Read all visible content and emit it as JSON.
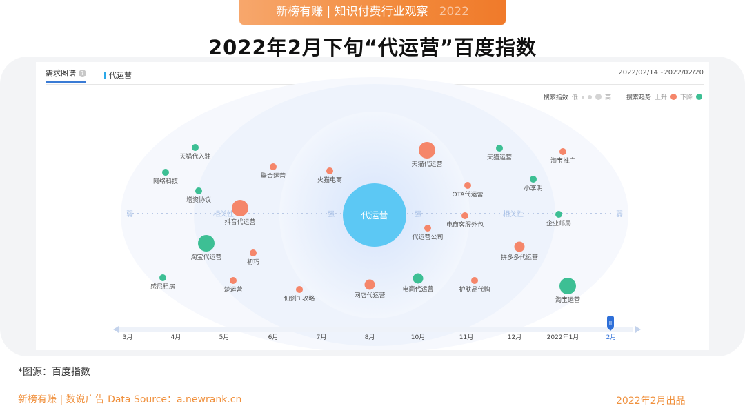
{
  "banner": {
    "text": "新榜有赚 | 知识付费行业观察",
    "year": "2022"
  },
  "page_title": "2022年2月下旬“代运营”百度指数",
  "panel": {
    "tab_active": "需求图谱",
    "help_glyph": "?",
    "keyword_tab": "代运营",
    "date_range": "2022/02/14~2022/02/20"
  },
  "legend": {
    "index_label": "搜索指数",
    "low": "低",
    "high": "高",
    "trend_label": "搜索趋势",
    "up": "上升",
    "down": "下降"
  },
  "colors": {
    "up": "#f5866a",
    "down": "#3dbf94",
    "center": "#5cc8f4",
    "accent": "#3a7bd5",
    "footer": "#f0913e"
  },
  "graph": {
    "center": "代运营",
    "axis_labels": [
      "弱",
      "相关性",
      "强",
      "强",
      "相关性",
      "弱"
    ],
    "nodes": [
      {
        "label": "天猫代入驻",
        "trend": "down",
        "size": 1
      },
      {
        "label": "网络科技",
        "trend": "down",
        "size": 1
      },
      {
        "label": "增资协议",
        "trend": "down",
        "size": 1
      },
      {
        "label": "抖音代运营",
        "trend": "up",
        "size": 3
      },
      {
        "label": "淘宝代运营",
        "trend": "down",
        "size": 3
      },
      {
        "label": "初巧",
        "trend": "up",
        "size": 1
      },
      {
        "label": "感尼租房",
        "trend": "down",
        "size": 1
      },
      {
        "label": "楚运营",
        "trend": "up",
        "size": 1
      },
      {
        "label": "联合运营",
        "trend": "up",
        "size": 1
      },
      {
        "label": "仙剑3 攻略",
        "trend": "up",
        "size": 1
      },
      {
        "label": "火猫电商",
        "trend": "up",
        "size": 1
      },
      {
        "label": "网店代运营",
        "trend": "up",
        "size": 2
      },
      {
        "label": "天猫代运营",
        "trend": "up",
        "size": 3
      },
      {
        "label": "OTA代运营",
        "trend": "up",
        "size": 1
      },
      {
        "label": "代运营公司",
        "trend": "up",
        "size": 1
      },
      {
        "label": "电商客服外包",
        "trend": "up",
        "size": 1
      },
      {
        "label": "电商代运营",
        "trend": "down",
        "size": 2
      },
      {
        "label": "护肤品代购",
        "trend": "up",
        "size": 1
      },
      {
        "label": "天猫运营",
        "trend": "down",
        "size": 1
      },
      {
        "label": "小李明",
        "trend": "down",
        "size": 1
      },
      {
        "label": "淘宝推广",
        "trend": "up",
        "size": 1
      },
      {
        "label": "企业邮局",
        "trend": "down",
        "size": 1
      },
      {
        "label": "拼多多代运营",
        "trend": "up",
        "size": 2
      },
      {
        "label": "淘宝运营",
        "trend": "down",
        "size": 3
      }
    ]
  },
  "timeline": {
    "months": [
      "3月",
      "4月",
      "5月",
      "6月",
      "7月",
      "8月",
      "10月",
      "11月",
      "12月",
      "2022年1月",
      "2月"
    ],
    "selected": "2月",
    "handle_glyph": "II"
  },
  "source_note": "*图源：百度指数",
  "footer": {
    "left": "新榜有赚 | 数说广告 Data Source：a.newrank.cn",
    "right": "2022年2月出品"
  }
}
